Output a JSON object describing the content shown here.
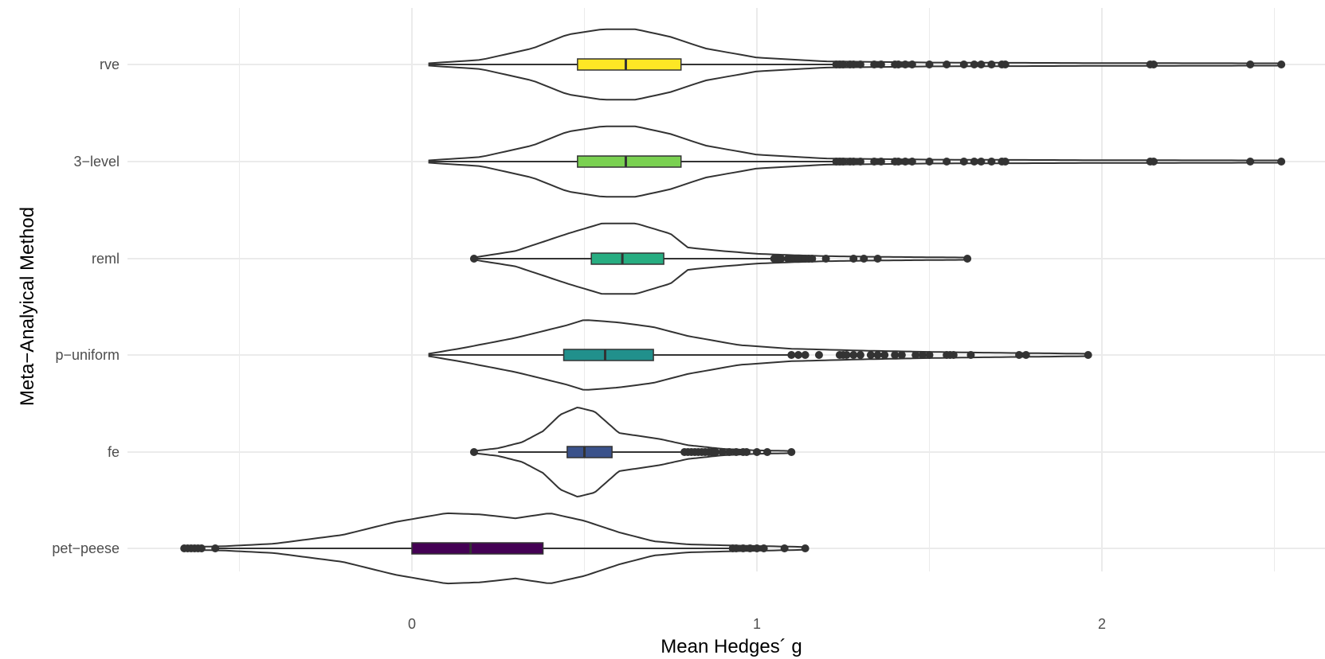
{
  "chart_data": {
    "type": "violin",
    "title": "",
    "xlabel": "Mean Hedges´ g",
    "ylabel": "Meta−Analyical Method",
    "xlim": [
      -0.8,
      2.6
    ],
    "x_ticks": [
      {
        "value": 0,
        "label": "0"
      },
      {
        "value": 1,
        "label": "1"
      },
      {
        "value": 2,
        "label": "2"
      }
    ],
    "x_minor_gridlines": [
      -0.5,
      0.5,
      1.5,
      2.5
    ],
    "grid": true,
    "legend": "none",
    "categories": [
      "pet-peese",
      "fe",
      "p-uniform",
      "reml",
      "3-level",
      "rve"
    ],
    "category_labels": [
      "pet−peese",
      "fe",
      "p−uniform",
      "reml",
      "3−level",
      "rve"
    ],
    "series": [
      {
        "category": "pet-peese",
        "color": "#440154",
        "box": {
          "whisker_low": -0.56,
          "q1": 0.0,
          "median": 0.17,
          "q3": 0.38,
          "whisker_high": 0.92
        },
        "violin_range": [
          -0.66,
          1.14
        ],
        "density": [
          [
            -0.66,
            0.005
          ],
          [
            -0.55,
            0.01
          ],
          [
            -0.4,
            0.03
          ],
          [
            -0.2,
            0.1
          ],
          [
            -0.05,
            0.2
          ],
          [
            0.1,
            0.27
          ],
          [
            0.2,
            0.26
          ],
          [
            0.3,
            0.23
          ],
          [
            0.4,
            0.27
          ],
          [
            0.5,
            0.21
          ],
          [
            0.6,
            0.12
          ],
          [
            0.7,
            0.05
          ],
          [
            0.8,
            0.025
          ],
          [
            0.95,
            0.015
          ],
          [
            1.14,
            0.005
          ]
        ],
        "outliers": [
          -0.66,
          -0.65,
          -0.64,
          -0.63,
          -0.62,
          -0.61,
          -0.57,
          0.93,
          0.94,
          0.96,
          0.98,
          1.0,
          1.02,
          1.08,
          1.14
        ]
      },
      {
        "category": "fe",
        "color": "#3B528B",
        "box": {
          "whisker_low": 0.25,
          "q1": 0.45,
          "median": 0.5,
          "q3": 0.58,
          "whisker_high": 0.78
        },
        "violin_range": [
          0.18,
          1.1
        ],
        "density": [
          [
            0.18,
            0.005
          ],
          [
            0.25,
            0.05
          ],
          [
            0.32,
            0.15
          ],
          [
            0.38,
            0.33
          ],
          [
            0.43,
            0.6
          ],
          [
            0.48,
            0.72
          ],
          [
            0.53,
            0.65
          ],
          [
            0.56,
            0.5
          ],
          [
            0.6,
            0.3
          ],
          [
            0.66,
            0.25
          ],
          [
            0.72,
            0.2
          ],
          [
            0.8,
            0.1
          ],
          [
            0.9,
            0.04
          ],
          [
            1.0,
            0.015
          ],
          [
            1.1,
            0.005
          ]
        ],
        "outliers": [
          0.18,
          0.79,
          0.8,
          0.81,
          0.82,
          0.83,
          0.84,
          0.85,
          0.86,
          0.87,
          0.88,
          0.9,
          0.92,
          0.94,
          0.96,
          0.97,
          1.0,
          1.03,
          1.1
        ]
      },
      {
        "category": "p-uniform",
        "color": "#21908C",
        "box": {
          "whisker_low": 0.05,
          "q1": 0.44,
          "median": 0.56,
          "q3": 0.7,
          "whisker_high": 1.09
        },
        "violin_range": [
          0.05,
          1.96
        ],
        "density": [
          [
            0.05,
            0.005
          ],
          [
            0.15,
            0.07
          ],
          [
            0.3,
            0.18
          ],
          [
            0.45,
            0.32
          ],
          [
            0.5,
            0.38
          ],
          [
            0.6,
            0.35
          ],
          [
            0.7,
            0.3
          ],
          [
            0.8,
            0.2
          ],
          [
            0.95,
            0.1
          ],
          [
            1.1,
            0.06
          ],
          [
            1.3,
            0.04
          ],
          [
            1.5,
            0.025
          ],
          [
            1.7,
            0.015
          ],
          [
            1.96,
            0.005
          ]
        ],
        "outliers": [
          1.1,
          1.12,
          1.14,
          1.18,
          1.24,
          1.25,
          1.26,
          1.28,
          1.3,
          1.33,
          1.35,
          1.37,
          1.4,
          1.42,
          1.46,
          1.48,
          1.5,
          1.55,
          1.56,
          1.57,
          1.62,
          1.76,
          1.78,
          1.96
        ]
      },
      {
        "category": "reml",
        "color": "#27AD81",
        "box": {
          "whisker_low": 0.18,
          "q1": 0.52,
          "median": 0.61,
          "q3": 0.73,
          "whisker_high": 1.04
        },
        "violin_range": [
          0.18,
          1.61
        ],
        "density": [
          [
            0.18,
            0.005
          ],
          [
            0.3,
            0.1
          ],
          [
            0.45,
            0.35
          ],
          [
            0.55,
            0.5
          ],
          [
            0.65,
            0.5
          ],
          [
            0.75,
            0.35
          ],
          [
            0.8,
            0.15
          ],
          [
            0.9,
            0.1
          ],
          [
            1.0,
            0.06
          ],
          [
            1.1,
            0.04
          ],
          [
            1.2,
            0.025
          ],
          [
            1.35,
            0.015
          ],
          [
            1.61,
            0.005
          ]
        ],
        "outliers": [
          0.18,
          1.05,
          1.06,
          1.07,
          1.09,
          1.1,
          1.11,
          1.12,
          1.13,
          1.14,
          1.15,
          1.16,
          1.2,
          1.28,
          1.31,
          1.35,
          1.61
        ]
      },
      {
        "category": "3-level",
        "color": "#7AD151",
        "box": {
          "whisker_low": 0.05,
          "q1": 0.48,
          "median": 0.62,
          "q3": 0.78,
          "whisker_high": 1.22
        },
        "violin_range": [
          0.05,
          2.52
        ],
        "density": [
          [
            0.05,
            0.005
          ],
          [
            0.2,
            0.05
          ],
          [
            0.35,
            0.2
          ],
          [
            0.45,
            0.38
          ],
          [
            0.55,
            0.45
          ],
          [
            0.65,
            0.45
          ],
          [
            0.75,
            0.35
          ],
          [
            0.85,
            0.2
          ],
          [
            1.0,
            0.08
          ],
          [
            1.2,
            0.03
          ],
          [
            1.5,
            0.015
          ],
          [
            2.0,
            0.008
          ],
          [
            2.52,
            0.005
          ]
        ],
        "outliers": [
          1.23,
          1.24,
          1.25,
          1.27,
          1.28,
          1.3,
          1.34,
          1.36,
          1.4,
          1.41,
          1.43,
          1.45,
          1.5,
          1.55,
          1.6,
          1.63,
          1.65,
          1.68,
          1.71,
          1.72,
          2.14,
          2.15,
          2.43,
          2.52
        ]
      },
      {
        "category": "rve",
        "color": "#FDE725",
        "box": {
          "whisker_low": 0.05,
          "q1": 0.48,
          "median": 0.62,
          "q3": 0.78,
          "whisker_high": 1.22
        },
        "violin_range": [
          0.05,
          2.52
        ],
        "density": [
          [
            0.05,
            0.005
          ],
          [
            0.2,
            0.05
          ],
          [
            0.35,
            0.2
          ],
          [
            0.45,
            0.38
          ],
          [
            0.55,
            0.45
          ],
          [
            0.65,
            0.45
          ],
          [
            0.75,
            0.35
          ],
          [
            0.85,
            0.2
          ],
          [
            1.0,
            0.08
          ],
          [
            1.2,
            0.03
          ],
          [
            1.5,
            0.015
          ],
          [
            2.0,
            0.008
          ],
          [
            2.52,
            0.005
          ]
        ],
        "outliers": [
          1.23,
          1.24,
          1.25,
          1.27,
          1.28,
          1.3,
          1.34,
          1.36,
          1.4,
          1.41,
          1.43,
          1.45,
          1.5,
          1.55,
          1.6,
          1.63,
          1.65,
          1.68,
          1.71,
          1.72,
          2.14,
          2.15,
          2.43,
          2.52
        ]
      }
    ]
  }
}
